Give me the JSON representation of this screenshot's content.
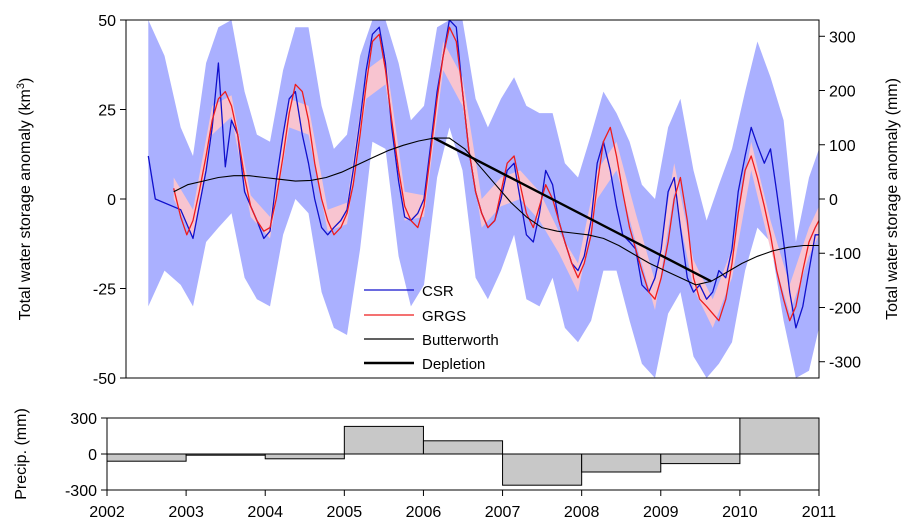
{
  "chart_data": [
    {
      "type": "line",
      "xlim": [
        2002,
        2011
      ],
      "ylim": [
        -50,
        50
      ],
      "y2lim": [
        -330,
        330
      ],
      "ylabel": "Total water storage anomaly (km³)",
      "ylabel_main": "Total water storage anomaly (km",
      "ylabel_sup": "3",
      "ylabel_end": ")",
      "y2label": "Total water storage anomaly (mm)",
      "yticks": [
        -50,
        -25,
        0,
        25,
        50
      ],
      "y2ticks": [
        -300,
        -200,
        -100,
        0,
        100,
        200,
        300
      ],
      "grid": false,
      "legend_position": "bottom-center",
      "colors": {
        "csr": "#1010cc",
        "csr_band": "#aab0ff",
        "grgs": "#ee1c1c",
        "grgs_band": "#f8c4d0",
        "butterworth": "#000000",
        "depletion": "#000000"
      },
      "series": [
        {
          "name": "CSR",
          "x": [
            2002.29,
            2002.38,
            2002.71,
            2002.87,
            2003.04,
            2003.12,
            2003.2,
            2003.29,
            2003.37,
            2003.45,
            2003.54,
            2003.62,
            2003.7,
            2003.79,
            2003.87,
            2003.95,
            2004.04,
            2004.12,
            2004.2,
            2004.29,
            2004.37,
            2004.45,
            2004.54,
            2004.62,
            2004.7,
            2004.79,
            2004.87,
            2004.95,
            2005.04,
            2005.12,
            2005.2,
            2005.29,
            2005.37,
            2005.45,
            2005.54,
            2005.62,
            2005.7,
            2005.79,
            2005.87,
            2005.95,
            2006.04,
            2006.12,
            2006.2,
            2006.29,
            2006.37,
            2006.45,
            2006.54,
            2006.62,
            2006.7,
            2006.79,
            2006.87,
            2006.95,
            2007.04,
            2007.12,
            2007.2,
            2007.29,
            2007.37,
            2007.45,
            2007.54,
            2007.62,
            2007.7,
            2007.79,
            2007.87,
            2007.95,
            2008.04,
            2008.12,
            2008.2,
            2008.29,
            2008.37,
            2008.45,
            2008.54,
            2008.62,
            2008.7,
            2008.79,
            2008.87,
            2008.95,
            2009.04,
            2009.12,
            2009.2,
            2009.29,
            2009.37,
            2009.45,
            2009.54,
            2009.62,
            2009.7,
            2009.79,
            2009.87,
            2009.95,
            2010.04,
            2010.12,
            2010.2,
            2010.29,
            2010.37,
            2010.45,
            2010.54,
            2010.62,
            2010.7,
            2010.79,
            2010.87,
            2010.95,
            2011.0
          ],
          "values": [
            12,
            0,
            -3,
            -11,
            8,
            20,
            38,
            9,
            22,
            18,
            2,
            -2,
            -6,
            -11,
            -9,
            5,
            18,
            28,
            30,
            18,
            10,
            0,
            -8,
            -10,
            -8,
            -6,
            -3,
            8,
            22,
            36,
            46,
            48,
            38,
            20,
            5,
            -5,
            -6,
            -4,
            0,
            14,
            30,
            40,
            50,
            48,
            30,
            14,
            2,
            -4,
            -8,
            -6,
            0,
            8,
            10,
            0,
            -10,
            -12,
            -4,
            8,
            4,
            -6,
            -12,
            -18,
            -20,
            -16,
            -6,
            10,
            16,
            8,
            -2,
            -10,
            -12,
            -14,
            -24,
            -26,
            -22,
            -14,
            2,
            6,
            -8,
            -22,
            -26,
            -24,
            -28,
            -26,
            -20,
            -22,
            -14,
            2,
            12,
            20,
            15,
            10,
            14,
            2,
            -12,
            -26,
            -36,
            -30,
            -20,
            -10,
            -10
          ]
        },
        {
          "name": "GRGS",
          "x": [
            2002.62,
            2002.71,
            2002.79,
            2002.87,
            2002.95,
            2003.04,
            2003.12,
            2003.2,
            2003.29,
            2003.37,
            2003.45,
            2003.54,
            2003.62,
            2003.7,
            2003.79,
            2003.87,
            2003.95,
            2004.04,
            2004.12,
            2004.2,
            2004.29,
            2004.37,
            2004.45,
            2004.54,
            2004.62,
            2004.7,
            2004.79,
            2004.87,
            2004.95,
            2005.04,
            2005.12,
            2005.2,
            2005.29,
            2005.37,
            2005.45,
            2005.54,
            2005.62,
            2005.7,
            2005.79,
            2005.87,
            2005.95,
            2006.04,
            2006.12,
            2006.2,
            2006.29,
            2006.37,
            2006.45,
            2006.54,
            2006.62,
            2006.7,
            2006.79,
            2006.87,
            2006.95,
            2007.04,
            2007.12,
            2007.2,
            2007.29,
            2007.37,
            2007.45,
            2007.54,
            2007.62,
            2007.7,
            2007.79,
            2007.87,
            2007.95,
            2008.04,
            2008.12,
            2008.2,
            2008.29,
            2008.37,
            2008.45,
            2008.54,
            2008.62,
            2008.7,
            2008.79,
            2008.87,
            2008.95,
            2009.04,
            2009.12,
            2009.2,
            2009.29,
            2009.37,
            2009.45,
            2009.54,
            2009.62,
            2009.7,
            2009.79,
            2009.87,
            2009.95,
            2010.04,
            2010.12,
            2010.2,
            2010.29,
            2010.37,
            2010.45,
            2010.54,
            2010.62,
            2010.7,
            2010.79,
            2010.87,
            2010.95,
            2011.0
          ],
          "values": [
            3,
            -5,
            -10,
            -6,
            2,
            12,
            22,
            28,
            30,
            26,
            18,
            6,
            -2,
            -6,
            -9,
            -8,
            0,
            12,
            24,
            32,
            30,
            22,
            10,
            0,
            -6,
            -10,
            -8,
            -4,
            4,
            18,
            32,
            44,
            46,
            36,
            22,
            8,
            -2,
            -6,
            -8,
            -2,
            12,
            28,
            40,
            48,
            44,
            30,
            14,
            2,
            -4,
            -8,
            -6,
            2,
            10,
            12,
            4,
            -4,
            -8,
            -2,
            4,
            0,
            -6,
            -12,
            -18,
            -22,
            -18,
            -10,
            4,
            16,
            20,
            12,
            2,
            -8,
            -14,
            -20,
            -26,
            -28,
            -22,
            -12,
            0,
            6,
            -6,
            -22,
            -28,
            -30,
            -32,
            -34,
            -28,
            -18,
            -4,
            8,
            12,
            6,
            -2,
            -10,
            -20,
            -28,
            -34,
            -30,
            -20,
            -12,
            -8,
            -6
          ]
        },
        {
          "name": "Butterworth",
          "x": [
            2002.62,
            2002.8,
            2003.0,
            2003.2,
            2003.4,
            2003.6,
            2003.8,
            2004.0,
            2004.2,
            2004.4,
            2004.6,
            2004.8,
            2005.0,
            2005.2,
            2005.4,
            2005.6,
            2005.8,
            2006.0,
            2006.2,
            2006.4,
            2006.6,
            2006.8,
            2007.0,
            2007.2,
            2007.4,
            2007.6,
            2007.8,
            2008.0,
            2008.2,
            2008.4,
            2008.6,
            2008.8,
            2009.0,
            2009.2,
            2009.4,
            2009.6,
            2009.8,
            2010.0,
            2010.2,
            2010.4,
            2010.6,
            2010.8,
            2011.0
          ],
          "values": [
            2,
            4,
            5,
            6,
            6.5,
            6.5,
            6,
            5.5,
            5,
            5.2,
            6,
            7.5,
            9.5,
            11.5,
            13.5,
            15,
            16.2,
            17,
            17,
            14,
            9,
            4,
            -1,
            -5,
            -8,
            -9,
            -9.5,
            -10,
            -11,
            -13,
            -15.5,
            -18,
            -20,
            -22,
            -24,
            -23,
            -20.5,
            -18,
            -16,
            -14.5,
            -13.5,
            -13,
            -13
          ]
        },
        {
          "name": "Depletion",
          "x": [
            2006.0,
            2009.6
          ],
          "values": [
            17,
            -23
          ]
        }
      ],
      "bands": [
        {
          "series": "CSR",
          "x": [
            2002.29,
            2002.5,
            2002.71,
            2002.87,
            2003.04,
            2003.2,
            2003.37,
            2003.54,
            2003.7,
            2003.87,
            2004.04,
            2004.2,
            2004.37,
            2004.54,
            2004.7,
            2004.87,
            2005.04,
            2005.2,
            2005.37,
            2005.54,
            2005.7,
            2005.87,
            2006.04,
            2006.2,
            2006.37,
            2006.54,
            2006.7,
            2006.87,
            2007.04,
            2007.2,
            2007.37,
            2007.54,
            2007.7,
            2007.87,
            2008.04,
            2008.2,
            2008.37,
            2008.54,
            2008.7,
            2008.87,
            2009.04,
            2009.2,
            2009.37,
            2009.54,
            2009.7,
            2009.87,
            2010.04,
            2010.2,
            2010.37,
            2010.54,
            2010.7,
            2010.87,
            2011.0
          ],
          "upper": [
            50,
            40,
            20,
            12,
            38,
            48,
            50,
            30,
            18,
            16,
            36,
            48,
            48,
            26,
            14,
            18,
            40,
            50,
            50,
            38,
            22,
            26,
            48,
            50,
            50,
            28,
            20,
            28,
            34,
            26,
            24,
            24,
            10,
            6,
            18,
            30,
            24,
            16,
            4,
            0,
            20,
            28,
            8,
            -6,
            4,
            14,
            30,
            44,
            34,
            22,
            -12,
            6,
            14
          ],
          "lower": [
            -30,
            -20,
            -24,
            -30,
            -12,
            -8,
            -4,
            -22,
            -28,
            -30,
            -10,
            0,
            -4,
            -26,
            -36,
            -38,
            -14,
            16,
            14,
            -16,
            -30,
            -24,
            6,
            20,
            8,
            -22,
            -28,
            -20,
            -10,
            -28,
            -30,
            -22,
            -36,
            -40,
            -34,
            -20,
            -20,
            -34,
            -46,
            -50,
            -32,
            -26,
            -44,
            -50,
            -46,
            -40,
            -20,
            -8,
            -12,
            -34,
            -50,
            -48,
            -36
          ]
        },
        {
          "series": "GRGS",
          "x": [
            2002.62,
            2002.87,
            2003.12,
            2003.37,
            2003.62,
            2003.87,
            2004.12,
            2004.37,
            2004.62,
            2004.87,
            2005.12,
            2005.37,
            2005.62,
            2005.87,
            2006.12,
            2006.37,
            2006.62,
            2006.87,
            2007.12,
            2007.37,
            2007.62,
            2007.87,
            2008.12,
            2008.37,
            2008.62,
            2008.87,
            2009.12,
            2009.37,
            2009.62,
            2009.87,
            2010.12,
            2010.37,
            2010.62,
            2010.87,
            2011.0
          ],
          "upper": [
            6,
            -3,
            26,
            29,
            1,
            -5,
            28,
            26,
            -3,
            -1,
            36,
            40,
            2,
            1,
            44,
            34,
            0,
            6,
            8,
            2,
            -9,
            -18,
            8,
            16,
            -4,
            -23,
            10,
            -17,
            -28,
            -14,
            16,
            -6,
            -24,
            -8,
            -2
          ],
          "lower": [
            0,
            -11,
            18,
            23,
            -5,
            -11,
            20,
            18,
            -9,
            -7,
            28,
            32,
            -6,
            -5,
            36,
            26,
            -8,
            -2,
            0,
            -6,
            -15,
            -26,
            0,
            8,
            -12,
            -31,
            2,
            -25,
            -36,
            -22,
            8,
            -14,
            -32,
            -16,
            -10
          ]
        }
      ]
    },
    {
      "type": "bar",
      "xlim": [
        2002,
        2011
      ],
      "ylim": [
        -300,
        300
      ],
      "ylabel": "Precip. (mm)",
      "yticks": [
        -300,
        0,
        300
      ],
      "xticks": [
        2002,
        2003,
        2004,
        2005,
        2006,
        2007,
        2008,
        2009,
        2010,
        2011
      ],
      "bar_color": "#c8c8c8",
      "categories": [
        "2002",
        "2003",
        "2004",
        "2005",
        "2006",
        "2007",
        "2008",
        "2009",
        "2010"
      ],
      "values": [
        -60,
        -10,
        -40,
        230,
        110,
        -260,
        -150,
        -80,
        310
      ]
    }
  ]
}
